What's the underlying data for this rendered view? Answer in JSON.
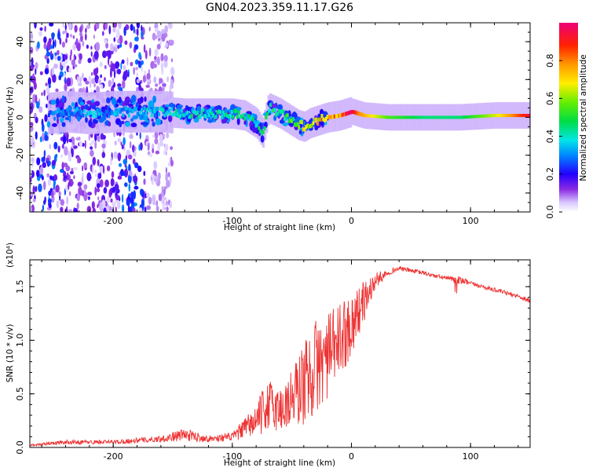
{
  "title": "GN04.2023.359.11.17.G26",
  "chart_data": [
    {
      "type": "heatmap",
      "xlabel": "Height of straight line (km)",
      "ylabel": "Frequency (Hz)",
      "xlim": [
        -270,
        150
      ],
      "ylim": [
        -50,
        50
      ],
      "x_ticks": [
        -200,
        -100,
        0,
        100
      ],
      "x_tick_labels": [
        "-200",
        "-100",
        "0",
        "100"
      ],
      "y_ticks": [
        -40,
        -20,
        0,
        20,
        40
      ],
      "y_tick_labels": [
        "-40",
        "-20",
        "0",
        "20",
        "40"
      ],
      "colorbar": {
        "label": "Normalized spectral amplitude",
        "range": [
          0,
          1
        ],
        "ticks": [
          0,
          0.2,
          0.4,
          0.6,
          0.8
        ],
        "tick_labels": [
          "0.0",
          "0.2",
          "0.4",
          "0.6",
          "0.8"
        ]
      },
      "ridge": {
        "x": [
          -255,
          -240,
          -220,
          -200,
          -180,
          -160,
          -140,
          -120,
          -100,
          -90,
          -80,
          -75,
          -70,
          -60,
          -50,
          -45,
          -40,
          -35,
          -30,
          -20,
          -10,
          -5,
          0,
          5,
          10,
          30,
          60,
          90,
          120,
          150
        ],
        "frequency": [
          2,
          3,
          2,
          3,
          3,
          3,
          2,
          2,
          2,
          1,
          -3,
          -8,
          5,
          2,
          -2,
          -4,
          -5,
          -3,
          -2,
          0,
          1,
          2,
          3,
          2,
          1,
          0,
          0,
          0,
          1,
          1
        ],
        "amplitude": [
          0.3,
          0.3,
          0.35,
          0.35,
          0.35,
          0.4,
          0.45,
          0.45,
          0.45,
          0.45,
          0.45,
          0.5,
          0.5,
          0.5,
          0.55,
          0.6,
          0.7,
          0.7,
          0.75,
          0.8,
          0.85,
          0.95,
          0.95,
          0.8,
          0.75,
          0.55,
          0.45,
          0.45,
          0.65,
          0.95
        ]
      }
    },
    {
      "type": "line",
      "xlabel": "Height of straight line (km)",
      "ylabel": "SNR (10 * v/v)",
      "y_multiplier": "(x10⁴)",
      "xlim": [
        -270,
        150
      ],
      "ylim": [
        0,
        1.75
      ],
      "x_ticks": [
        -200,
        -100,
        0,
        100
      ],
      "x_tick_labels": [
        "-200",
        "-100",
        "0",
        "100"
      ],
      "y_ticks": [
        0,
        0.5,
        1.0,
        1.5
      ],
      "y_tick_labels": [
        "0.0",
        "0.5",
        "1.0",
        "1.5"
      ],
      "series": [
        {
          "color": "#ee3333",
          "x": [
            -270,
            -240,
            -200,
            -160,
            -140,
            -120,
            -100,
            -80,
            -70,
            -60,
            -50,
            -40,
            -30,
            -20,
            -10,
            0,
            10,
            20,
            30,
            40,
            50,
            60,
            70,
            80,
            90,
            100,
            110,
            120,
            130,
            140,
            150
          ],
          "y": [
            0.02,
            0.05,
            0.05,
            0.08,
            0.12,
            0.08,
            0.1,
            0.25,
            0.4,
            0.35,
            0.45,
            0.6,
            0.75,
            0.85,
            1.0,
            1.15,
            1.35,
            1.55,
            1.63,
            1.67,
            1.65,
            1.63,
            1.6,
            1.58,
            1.56,
            1.53,
            1.5,
            1.47,
            1.44,
            1.41,
            1.37
          ],
          "noise": [
            0.01,
            0.02,
            0.02,
            0.03,
            0.06,
            0.03,
            0.04,
            0.15,
            0.25,
            0.22,
            0.3,
            0.4,
            0.45,
            0.4,
            0.35,
            0.3,
            0.2,
            0.08,
            0.03,
            0.02,
            0.02,
            0.02,
            0.02,
            0.02,
            0.04,
            0.02,
            0.02,
            0.02,
            0.02,
            0.02,
            0.03
          ]
        }
      ]
    }
  ]
}
